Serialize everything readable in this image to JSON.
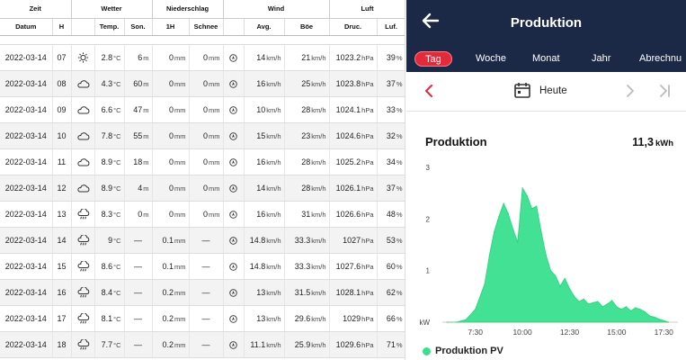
{
  "weather": {
    "groups": [
      "Zeit",
      "Wetter",
      "Niederschlag",
      "Wind",
      "Luft"
    ],
    "headers": {
      "datum": "Datum",
      "h": "H",
      "temp": "Temp.",
      "son": "Son.",
      "h1": "1H",
      "schnee": "Schnee",
      "avg": "Avg.",
      "boe": "Böe",
      "druc": "Druc.",
      "luf": "Luf."
    },
    "units": {
      "temp": "°C",
      "son": "m",
      "rain": "mm",
      "wind": "km/h",
      "press": "hPa",
      "hum": "%"
    },
    "rows": [
      {
        "date": "2022-03-14",
        "h": "07",
        "icon": "sun-icon",
        "temp": "2.8",
        "son": "6",
        "rain": "0",
        "snow": "0",
        "avg": "14",
        "boe": "21",
        "press": "1023.2",
        "hum": "39"
      },
      {
        "date": "2022-03-14",
        "h": "08",
        "icon": "cloud-icon",
        "temp": "4.3",
        "son": "60",
        "rain": "0",
        "snow": "0",
        "avg": "16",
        "boe": "25",
        "press": "1023.8",
        "hum": "37"
      },
      {
        "date": "2022-03-14",
        "h": "09",
        "icon": "cloud-icon",
        "temp": "6.6",
        "son": "47",
        "rain": "0",
        "snow": "0",
        "avg": "10",
        "boe": "28",
        "press": "1024.1",
        "hum": "33"
      },
      {
        "date": "2022-03-14",
        "h": "10",
        "icon": "cloud-icon",
        "temp": "7.8",
        "son": "55",
        "rain": "0",
        "snow": "0",
        "avg": "15",
        "boe": "23",
        "press": "1024.6",
        "hum": "32"
      },
      {
        "date": "2022-03-14",
        "h": "11",
        "icon": "cloud-icon",
        "temp": "8.9",
        "son": "18",
        "rain": "0",
        "snow": "0",
        "avg": "16",
        "boe": "28",
        "press": "1025.2",
        "hum": "34"
      },
      {
        "date": "2022-03-14",
        "h": "12",
        "icon": "cloud-icon",
        "temp": "8.9",
        "son": "4",
        "rain": "0",
        "snow": "0",
        "avg": "14",
        "boe": "28",
        "press": "1026.1",
        "hum": "37"
      },
      {
        "date": "2022-03-14",
        "h": "13",
        "icon": "rain-cloud-icon",
        "temp": "8.3",
        "son": "0",
        "rain": "0",
        "snow": "0",
        "avg": "16",
        "boe": "31",
        "press": "1026.6",
        "hum": "48"
      },
      {
        "date": "2022-03-14",
        "h": "14",
        "icon": "rain-cloud-icon",
        "temp": "9",
        "son": "—",
        "rain": "0.1",
        "snow": "—",
        "avg": "14.8",
        "boe": "33.3",
        "press": "1027",
        "hum": "53"
      },
      {
        "date": "2022-03-14",
        "h": "15",
        "icon": "rain-cloud-icon",
        "temp": "8.6",
        "son": "—",
        "rain": "0.1",
        "snow": "—",
        "avg": "14.8",
        "boe": "33.3",
        "press": "1027.6",
        "hum": "60"
      },
      {
        "date": "2022-03-14",
        "h": "16",
        "icon": "rain-cloud-icon",
        "temp": "8.4",
        "son": "—",
        "rain": "0.2",
        "snow": "—",
        "avg": "13",
        "boe": "31.5",
        "press": "1028.1",
        "hum": "62"
      },
      {
        "date": "2022-03-14",
        "h": "17",
        "icon": "rain-cloud-icon",
        "temp": "8.1",
        "son": "—",
        "rain": "0.2",
        "snow": "—",
        "avg": "13",
        "boe": "29.6",
        "press": "1029",
        "hum": "66"
      },
      {
        "date": "2022-03-14",
        "h": "18",
        "icon": "rain-cloud-icon",
        "temp": "7.7",
        "son": "—",
        "rain": "0.2",
        "snow": "—",
        "avg": "11.1",
        "boe": "25.9",
        "press": "1029.6",
        "hum": "71"
      }
    ]
  },
  "app": {
    "title": "Produktion",
    "tabs": [
      "Tag",
      "Woche",
      "Monat",
      "Jahr",
      "Abrechnu"
    ],
    "active_tab": "Tag",
    "date_label": "Heute",
    "card_title": "Produktion",
    "total_value": "11,3",
    "total_unit": "kWh",
    "legend_label": "Produktion PV",
    "accent": "#e12b3b",
    "header_bg": "#1c2946",
    "series_color": "#39df8e"
  },
  "chart_data": {
    "type": "area",
    "x_ticks": [
      "7:30",
      "10:00",
      "12:30",
      "15:00",
      "17:30"
    ],
    "y_ticks": [
      "kW",
      "1",
      "2",
      "3"
    ],
    "ylim": [
      0,
      3
    ],
    "x": [
      "6:00",
      "6:30",
      "7:00",
      "7:30",
      "8:00",
      "8:15",
      "8:30",
      "8:45",
      "9:00",
      "9:15",
      "9:30",
      "9:45",
      "10:00",
      "10:15",
      "10:30",
      "10:45",
      "11:00",
      "11:15",
      "11:30",
      "11:45",
      "12:00",
      "12:15",
      "12:30",
      "12:45",
      "13:00",
      "13:15",
      "13:30",
      "13:45",
      "14:00",
      "14:15",
      "14:30",
      "14:45",
      "15:00",
      "15:15",
      "15:30",
      "15:45",
      "16:00",
      "16:15",
      "16:30",
      "16:45",
      "17:00",
      "17:15",
      "17:30",
      "17:45"
    ],
    "series": [
      {
        "name": "Produktion PV",
        "values": [
          0,
          0,
          0.05,
          0.25,
          0.75,
          1.3,
          1.75,
          2.05,
          2.3,
          2.1,
          1.8,
          1.55,
          2.6,
          2.45,
          2.2,
          2.25,
          1.75,
          1.3,
          1.0,
          0.9,
          0.7,
          0.85,
          0.65,
          0.5,
          0.4,
          0.45,
          0.35,
          0.38,
          0.4,
          0.3,
          0.35,
          0.42,
          0.3,
          0.25,
          0.3,
          0.22,
          0.28,
          0.25,
          0.2,
          0.12,
          0.1,
          0.06,
          0.03,
          0
        ]
      }
    ]
  }
}
